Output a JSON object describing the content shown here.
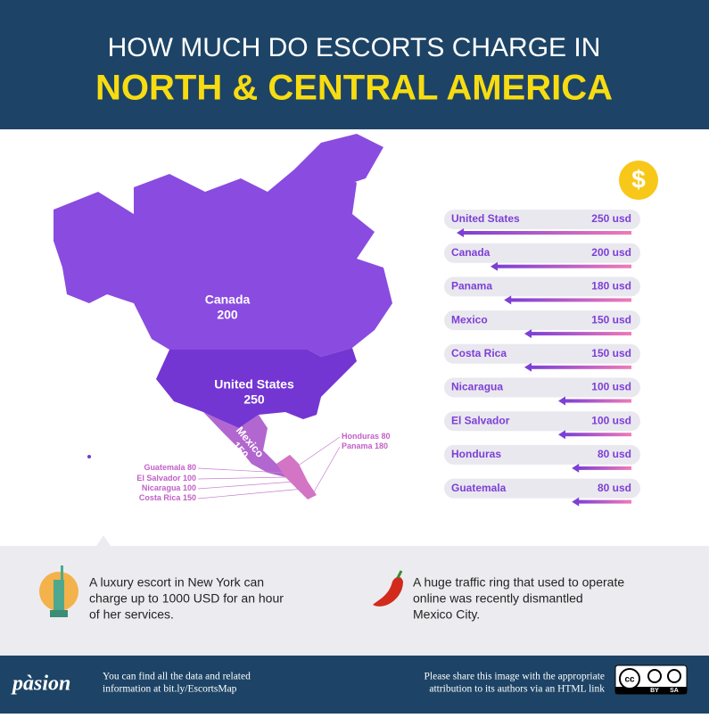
{
  "header": {
    "line1": "HOW MUCH DO ESCORTS CHARGE IN",
    "line2": "NORTH & CENTRAL AMERICA"
  },
  "chart_data": {
    "type": "bar",
    "orientation": "horizontal",
    "color": "#7d3fd6",
    "categories": [
      "United States",
      "Canada",
      "Panama",
      "Mexico",
      "Costa Rica",
      "Nicaragua",
      "El Salvador",
      "Honduras",
      "Guatemala"
    ],
    "values": [
      250,
      200,
      180,
      150,
      150,
      100,
      100,
      80,
      80
    ],
    "value_labels": [
      "250 usd",
      "200 usd",
      "180 usd",
      "150 usd",
      "150 usd",
      "100 usd",
      "100 usd",
      "80 usd",
      "80 usd"
    ]
  },
  "map_labels": [
    {
      "name": "Canada",
      "value": 200
    },
    {
      "name": "United States",
      "value": 250
    },
    {
      "name": "Mexico",
      "value": 150
    },
    {
      "name": "Honduras",
      "value": 80
    },
    {
      "name": "Panama",
      "value": 180
    },
    {
      "name": "Guatemala",
      "value": 80
    },
    {
      "name": "El Salvador",
      "value": 100
    },
    {
      "name": "Nicaragua",
      "value": 100
    },
    {
      "name": "Costa Rica",
      "value": 150
    }
  ],
  "notes": [
    {
      "lines": [
        "A luxury escort in New York can",
        "charge up to 1000 USD for an hour",
        "of her services."
      ]
    },
    {
      "lines": [
        "A huge traffic ring that used to operate",
        "online was recently dismantled",
        "Mexico City."
      ]
    }
  ],
  "footer": {
    "logo": "pàsion",
    "left": [
      "You can find all the data and related",
      "information at bit.ly/EscortsMap"
    ],
    "right": [
      "Please share this image with the appropriate",
      "attribution to its authors via an HTML link"
    ],
    "license": [
      "BY",
      "SA"
    ]
  }
}
